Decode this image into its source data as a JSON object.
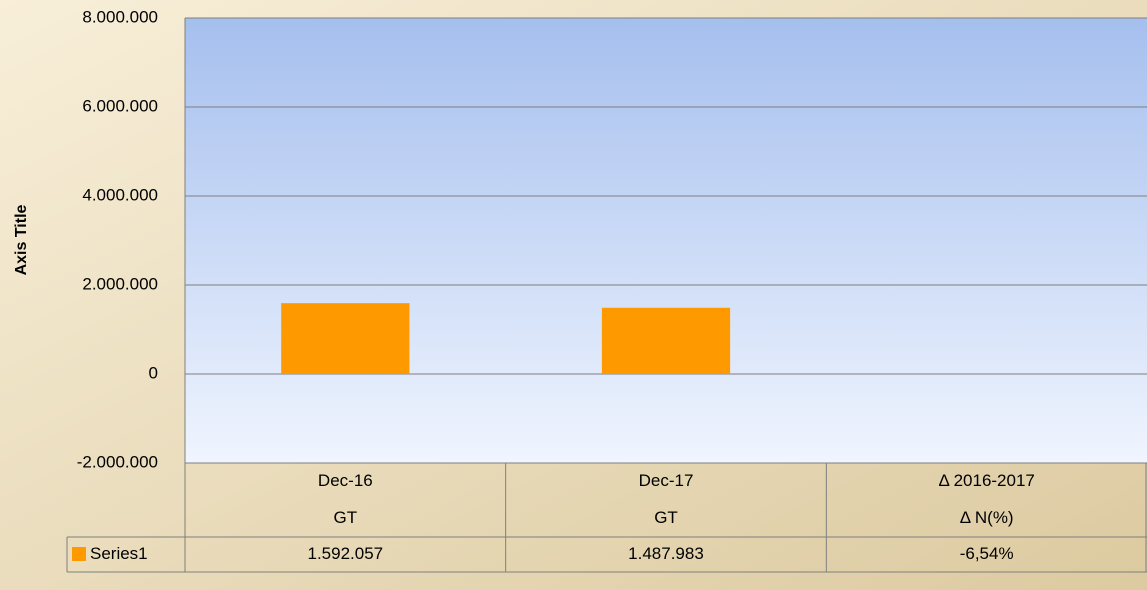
{
  "chart_data": {
    "type": "bar",
    "y_axis_label": "Axis Title",
    "categories": [
      "Dec-16",
      "Dec-17",
      "Δ 2016-2017"
    ],
    "subcategories": [
      "GT",
      "GT",
      "Δ N(%)"
    ],
    "series": [
      {
        "name": "Series1",
        "color": "#ff9900",
        "values": [
          1592057,
          1487983,
          -6.54
        ],
        "value_labels": [
          "1.592.057",
          "1.487.983",
          "-6,54%"
        ]
      }
    ],
    "ylim": [
      -2000000,
      8000000
    ],
    "yticks": [
      {
        "value": -2000000,
        "label": "-2.000.000"
      },
      0,
      {
        "value": 2000000,
        "label": "2.000.000"
      },
      {
        "value": 4000000,
        "label": "4.000.000"
      },
      {
        "value": 6000000,
        "label": "6.000.000"
      },
      {
        "value": 8000000,
        "label": "8.000.000"
      }
    ],
    "grid": true
  }
}
